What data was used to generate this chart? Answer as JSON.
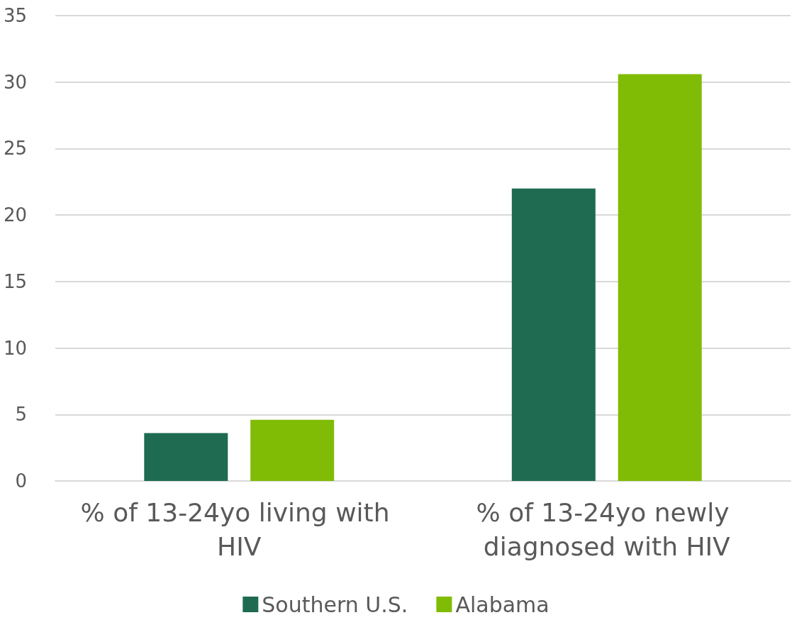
{
  "chart_data": {
    "type": "bar",
    "categories": [
      "% of 13-24yo living with HIV",
      "% of 13-24yo newly diagnosed with HIV"
    ],
    "series": [
      {
        "name": "Southern U.S.",
        "color": "#1e6b52",
        "values": [
          3.6,
          22.0
        ]
      },
      {
        "name": "Alabama",
        "color": "#80bc06",
        "values": [
          4.6,
          30.6
        ]
      }
    ],
    "ylim": [
      0,
      35
    ],
    "yticks": [
      0,
      5,
      10,
      15,
      20,
      25,
      30,
      35
    ],
    "grid": "y",
    "legend": "bottom"
  }
}
